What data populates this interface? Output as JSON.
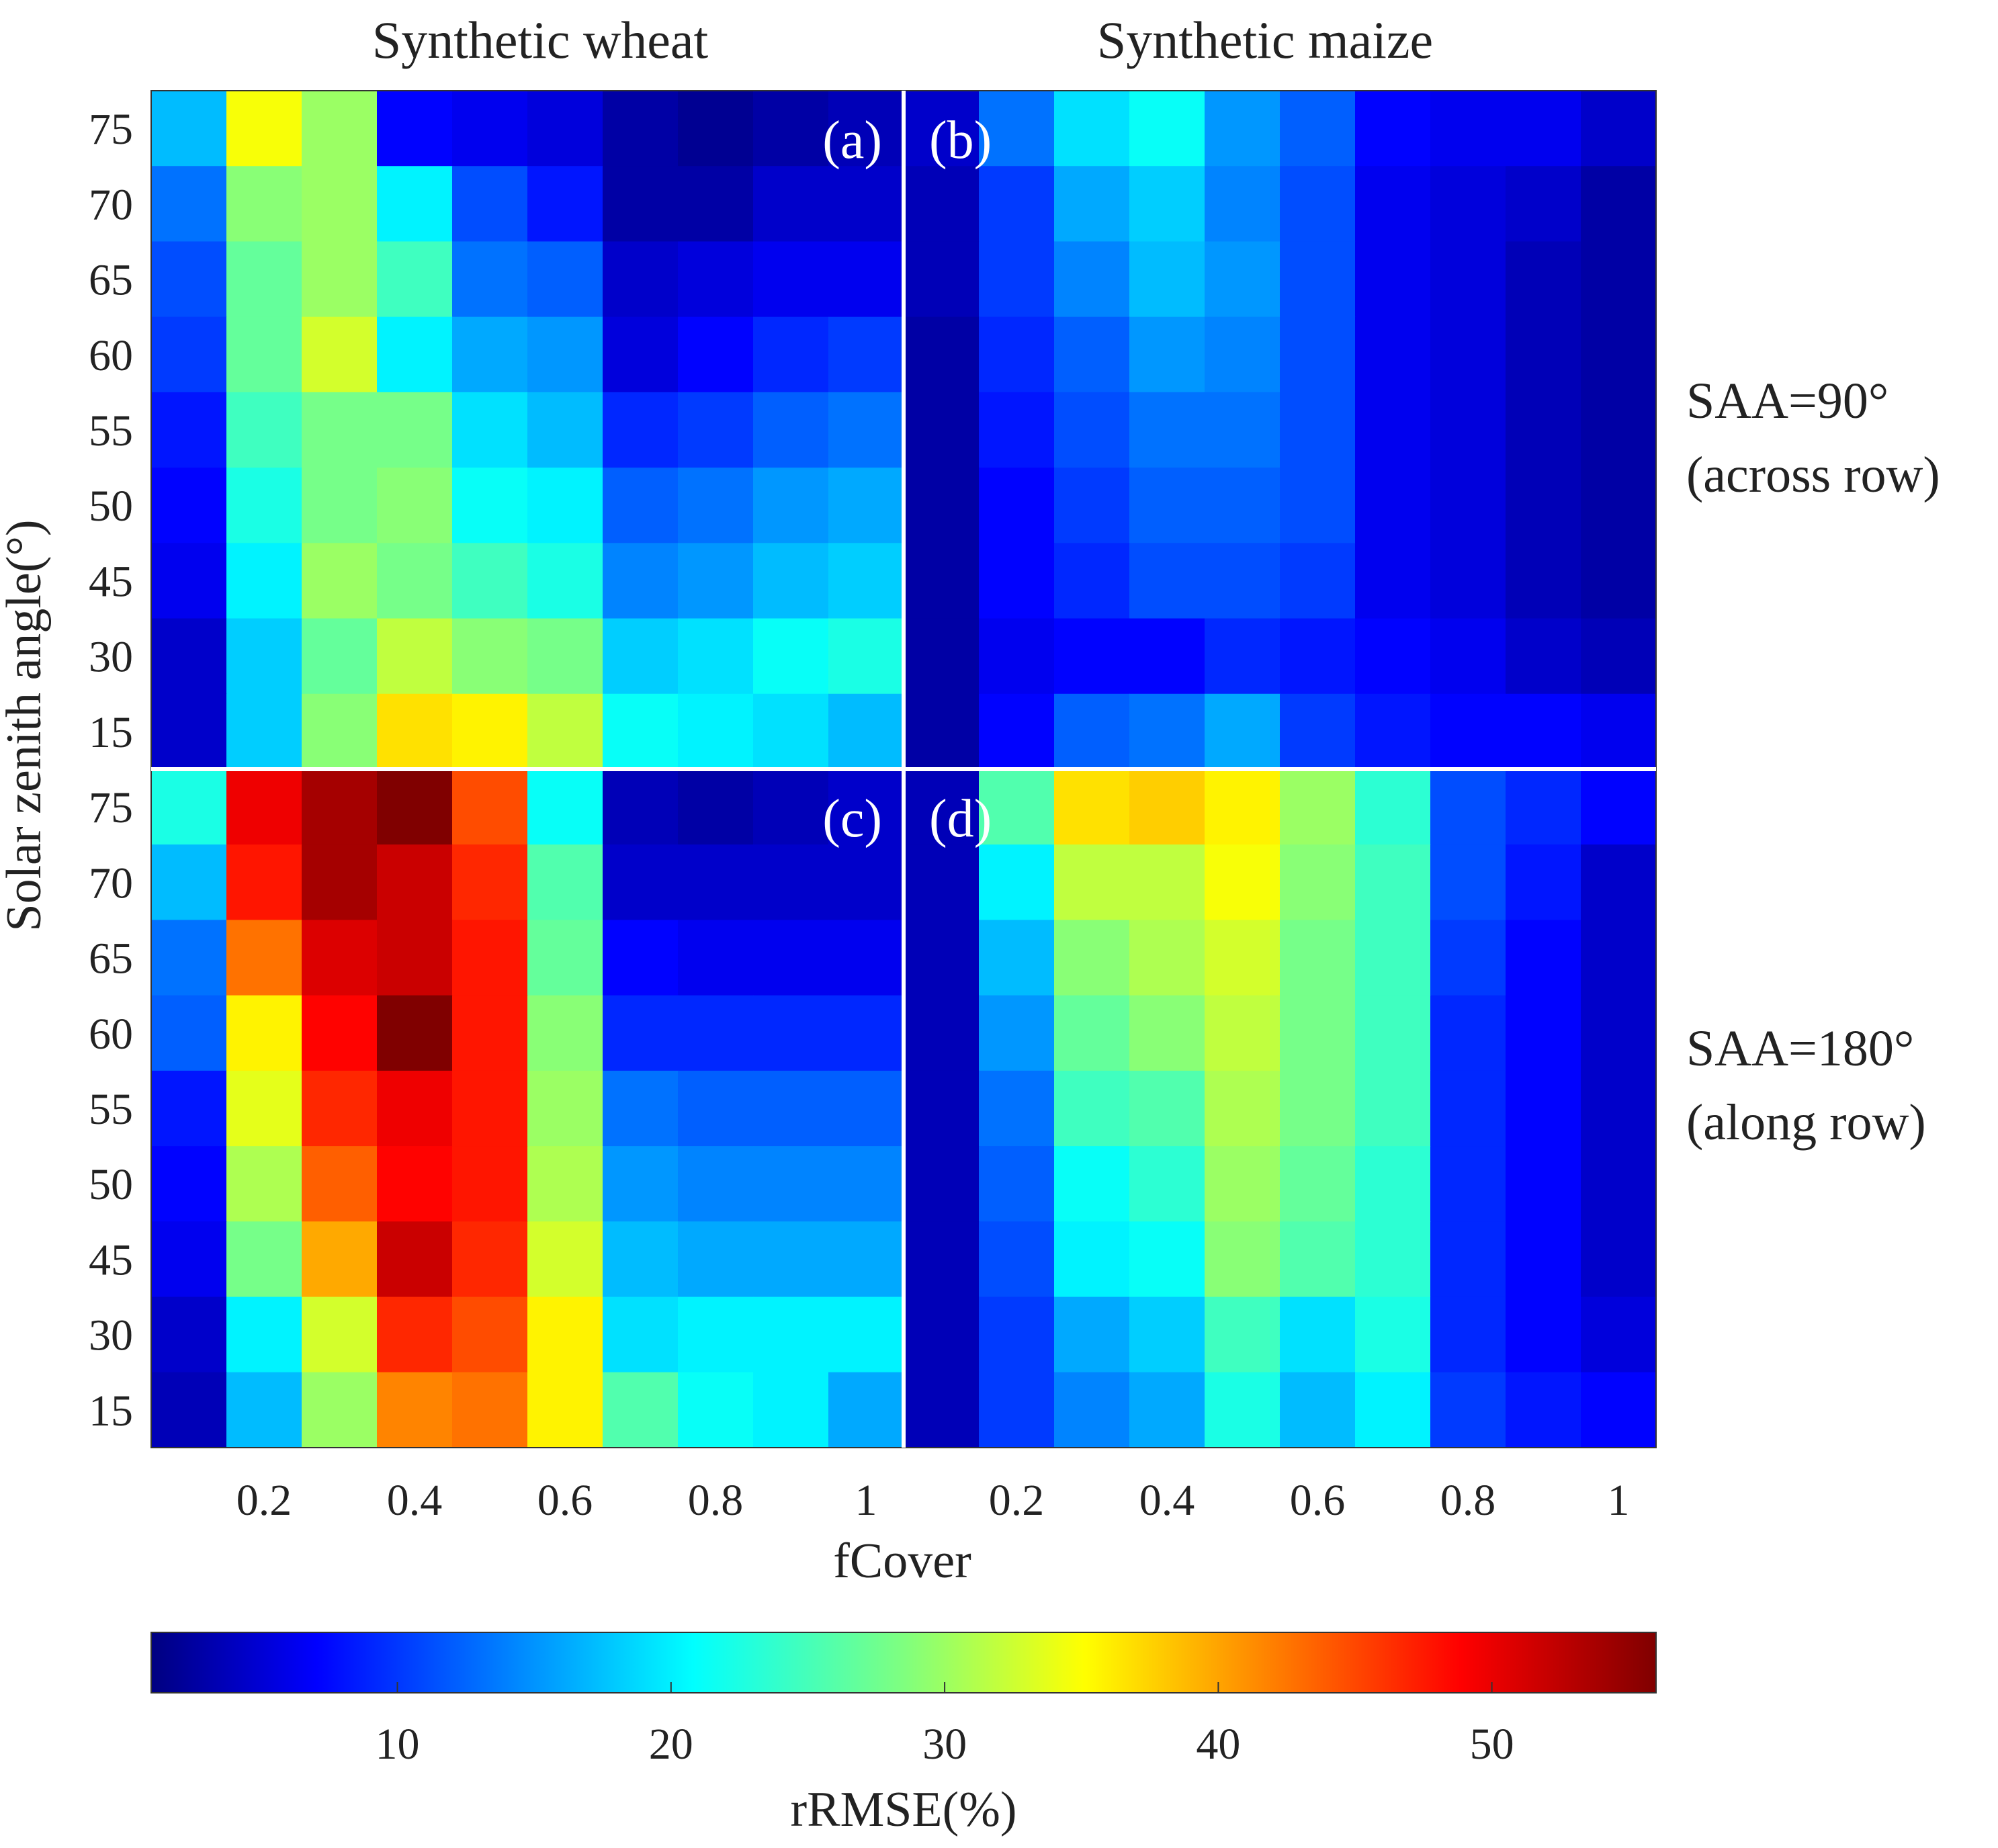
{
  "chart_data": {
    "type": "heatmap",
    "column_titles": [
      "Synthetic wheat",
      "Synthetic maize"
    ],
    "row_labels": [
      "SAA=90°",
      "(across row)",
      "SAA=180°",
      "(along row)"
    ],
    "xlabel": "fCover",
    "ylabel": "Solar zenith angle(°)",
    "x_categories": [
      0.1,
      0.2,
      0.3,
      0.4,
      0.5,
      0.6,
      0.7,
      0.8,
      0.9,
      1.0
    ],
    "x_tick_labels": [
      "0.2",
      "0.4",
      "0.6",
      "0.8",
      "1"
    ],
    "y_categories": [
      75,
      70,
      65,
      60,
      55,
      50,
      45,
      30,
      15
    ],
    "y_tick_labels": [
      "75",
      "70",
      "65",
      "60",
      "55",
      "50",
      "45",
      "30",
      "15"
    ],
    "colorbar": {
      "label": "rRMSE(%)",
      "range": [
        1,
        56
      ],
      "ticks": [
        10,
        20,
        30,
        40,
        50
      ],
      "colormap": "jet"
    },
    "panels": [
      {
        "label": "(a)",
        "crop": "Synthetic wheat",
        "saa": "SAA=90°",
        "values": [
          [
            18,
            35,
            30,
            8,
            7,
            6,
            3,
            2,
            3,
            4
          ],
          [
            14,
            29,
            30,
            21,
            12,
            9,
            3,
            3,
            5,
            5
          ],
          [
            12,
            27,
            30,
            25,
            14,
            13,
            5,
            6,
            7,
            7
          ],
          [
            11,
            27,
            33,
            21,
            17,
            16,
            6,
            8,
            10,
            11
          ],
          [
            9,
            25,
            28,
            28,
            20,
            18,
            10,
            11,
            13,
            14
          ],
          [
            8,
            23,
            28,
            29,
            22,
            21,
            13,
            14,
            16,
            17
          ],
          [
            7,
            21,
            30,
            28,
            25,
            23,
            15,
            16,
            18,
            19
          ],
          [
            5,
            19,
            27,
            32,
            29,
            28,
            19,
            20,
            22,
            23
          ],
          [
            5,
            19,
            29,
            37,
            36,
            32,
            22,
            21,
            20,
            18
          ]
        ]
      },
      {
        "label": "(b)",
        "crop": "Synthetic maize",
        "saa": "SAA=90°",
        "values": [
          [
            5,
            14,
            20,
            22,
            16,
            13,
            8,
            7,
            7,
            5
          ],
          [
            4,
            11,
            17,
            19,
            15,
            12,
            7,
            6,
            5,
            3
          ],
          [
            4,
            11,
            15,
            18,
            16,
            12,
            7,
            6,
            4,
            3
          ],
          [
            3,
            10,
            13,
            16,
            15,
            12,
            7,
            6,
            4,
            3
          ],
          [
            3,
            9,
            12,
            14,
            14,
            12,
            7,
            6,
            4,
            3
          ],
          [
            3,
            8,
            11,
            13,
            13,
            12,
            7,
            6,
            4,
            3
          ],
          [
            3,
            8,
            10,
            12,
            12,
            11,
            7,
            6,
            4,
            3
          ],
          [
            3,
            7,
            8,
            8,
            10,
            9,
            8,
            7,
            5,
            4
          ],
          [
            3,
            8,
            13,
            14,
            17,
            11,
            9,
            8,
            8,
            7
          ]
        ]
      },
      {
        "label": "(c)",
        "crop": "Synthetic wheat",
        "saa": "SAA=180°",
        "values": [
          [
            23,
            50,
            54,
            56,
            45,
            22,
            4,
            3,
            4,
            5
          ],
          [
            18,
            48,
            54,
            52,
            47,
            26,
            5,
            5,
            5,
            5
          ],
          [
            14,
            43,
            51,
            52,
            48,
            27,
            8,
            7,
            7,
            7
          ],
          [
            13,
            36,
            49,
            56,
            48,
            29,
            10,
            10,
            10,
            10
          ],
          [
            9,
            34,
            47,
            50,
            48,
            30,
            14,
            13,
            13,
            13
          ],
          [
            8,
            31,
            44,
            49,
            48,
            31,
            16,
            15,
            15,
            15
          ],
          [
            7,
            28,
            40,
            52,
            47,
            33,
            18,
            17,
            17,
            17
          ],
          [
            5,
            21,
            33,
            47,
            45,
            36,
            20,
            21,
            21,
            21
          ],
          [
            4,
            18,
            30,
            42,
            43,
            36,
            26,
            22,
            21,
            17
          ]
        ]
      },
      {
        "label": "(d)",
        "crop": "Synthetic maize",
        "saa": "SAA=180°",
        "values": [
          [
            4,
            26,
            37,
            38,
            36,
            30,
            24,
            12,
            10,
            8
          ],
          [
            4,
            21,
            32,
            32,
            35,
            29,
            25,
            12,
            9,
            5
          ],
          [
            4,
            18,
            29,
            31,
            33,
            28,
            25,
            11,
            8,
            5
          ],
          [
            4,
            16,
            27,
            29,
            32,
            28,
            25,
            10,
            8,
            5
          ],
          [
            4,
            14,
            25,
            26,
            31,
            28,
            25,
            10,
            8,
            5
          ],
          [
            4,
            13,
            22,
            24,
            30,
            27,
            24,
            10,
            8,
            5
          ],
          [
            4,
            12,
            21,
            22,
            29,
            26,
            24,
            10,
            8,
            5
          ],
          [
            4,
            11,
            17,
            19,
            25,
            20,
            23,
            10,
            8,
            6
          ],
          [
            4,
            11,
            15,
            17,
            23,
            18,
            21,
            11,
            9,
            8
          ]
        ]
      }
    ]
  }
}
